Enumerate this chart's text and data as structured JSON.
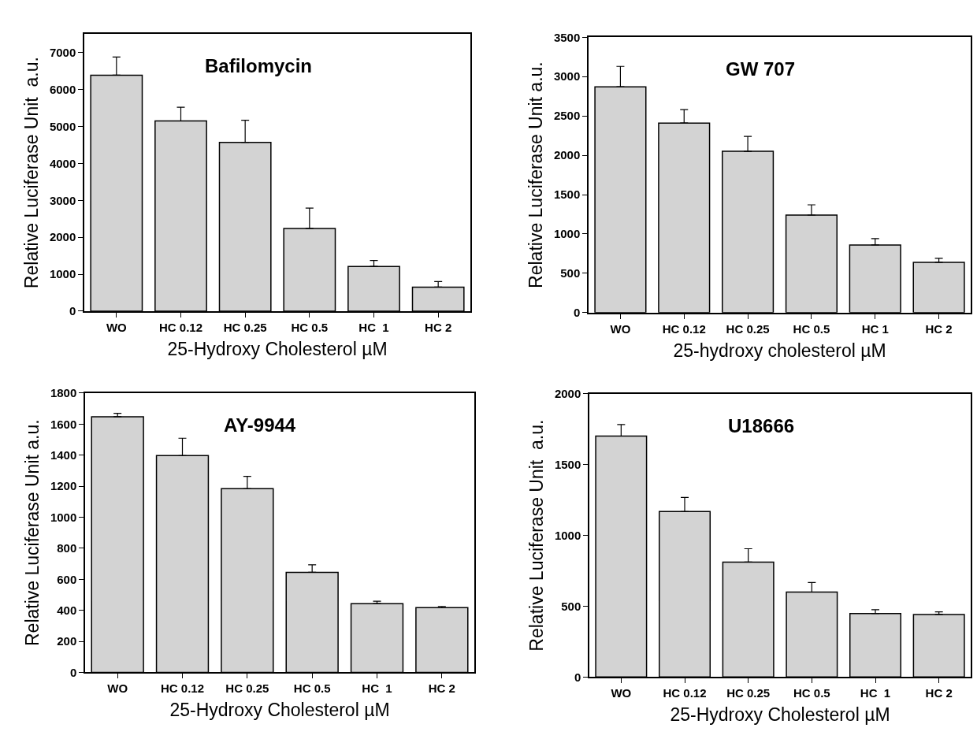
{
  "chart_data": [
    {
      "type": "bar",
      "title": "Bafilomycin",
      "xlabel": "25-Hydroxy Cholesterol µM",
      "ylabel": "Relative Luciferase Unit  a.u.",
      "categories": [
        "WO",
        "HC 0.12",
        "HC 0.25",
        "HC 0.5",
        "HC  1",
        "HC 2"
      ],
      "values": [
        6390,
        5150,
        4570,
        2240,
        1210,
        650
      ],
      "errors": [
        [
          6390,
          6880
        ],
        [
          5150,
          5520
        ],
        [
          4570,
          5170
        ],
        [
          2240,
          2790
        ],
        [
          1210,
          1370
        ],
        [
          650,
          800
        ]
      ],
      "color": "#d3d3d3",
      "ylim": [
        0,
        7500
      ],
      "yticks": [
        0,
        1000,
        2000,
        3000,
        4000,
        5000,
        6000,
        7000
      ]
    },
    {
      "type": "bar",
      "title": "GW 707",
      "xlabel": "25-hydroxy cholesterol µM",
      "ylabel": "Relative Luciferase Unit a.u.",
      "categories": [
        "WO",
        "HC 0.12",
        "HC 0.25",
        "HC 0.5",
        "HC 1",
        "HC 2"
      ],
      "values": [
        2870,
        2410,
        2050,
        1240,
        860,
        640
      ],
      "errors": [
        [
          2870,
          3130
        ],
        [
          2410,
          2580
        ],
        [
          2050,
          2240
        ],
        [
          1240,
          1370
        ],
        [
          860,
          940
        ],
        [
          640,
          690
        ]
      ],
      "color": "#d3d3d3",
      "ylim": [
        0,
        3500
      ],
      "yticks": [
        0,
        500,
        1000,
        1500,
        2000,
        2500,
        3000,
        3500
      ]
    },
    {
      "type": "bar",
      "title": "AY-9944",
      "xlabel": "25-Hydroxy Cholesterol µM",
      "ylabel": "Relative Luciferase Unit a.u.",
      "categories": [
        "WO",
        "HC 0.12",
        "HC 0.25",
        "HC 0.5",
        "HC  1",
        "HC 2"
      ],
      "values": [
        1648,
        1397,
        1184,
        645,
        443,
        417
      ],
      "errors": [
        [
          1648,
          1670
        ],
        [
          1397,
          1509
        ],
        [
          1184,
          1263
        ],
        [
          645,
          693
        ],
        [
          443,
          459
        ],
        [
          417,
          425
        ]
      ],
      "color": "#d3d3d3",
      "ylim": [
        0,
        1800
      ],
      "yticks": [
        0,
        200,
        400,
        600,
        800,
        1000,
        1200,
        1400,
        1600,
        1800
      ]
    },
    {
      "type": "bar",
      "title": "U18666",
      "xlabel": "25-Hydroxy Cholesterol µM",
      "ylabel": "Relative Luciferase Unit  a.u.",
      "categories": [
        "WO",
        "HC 0.12",
        "HC 0.25",
        "HC 0.5",
        "HC  1",
        "HC 2"
      ],
      "values": [
        1702,
        1169,
        812,
        600,
        449,
        442
      ],
      "errors": [
        [
          1702,
          1783
        ],
        [
          1169,
          1269
        ],
        [
          812,
          906
        ],
        [
          600,
          667
        ],
        [
          449,
          475
        ],
        [
          442,
          460
        ]
      ],
      "color": "#d3d3d3",
      "ylim": [
        0,
        2000
      ],
      "yticks": [
        0,
        500,
        1000,
        1500,
        2000
      ]
    }
  ]
}
